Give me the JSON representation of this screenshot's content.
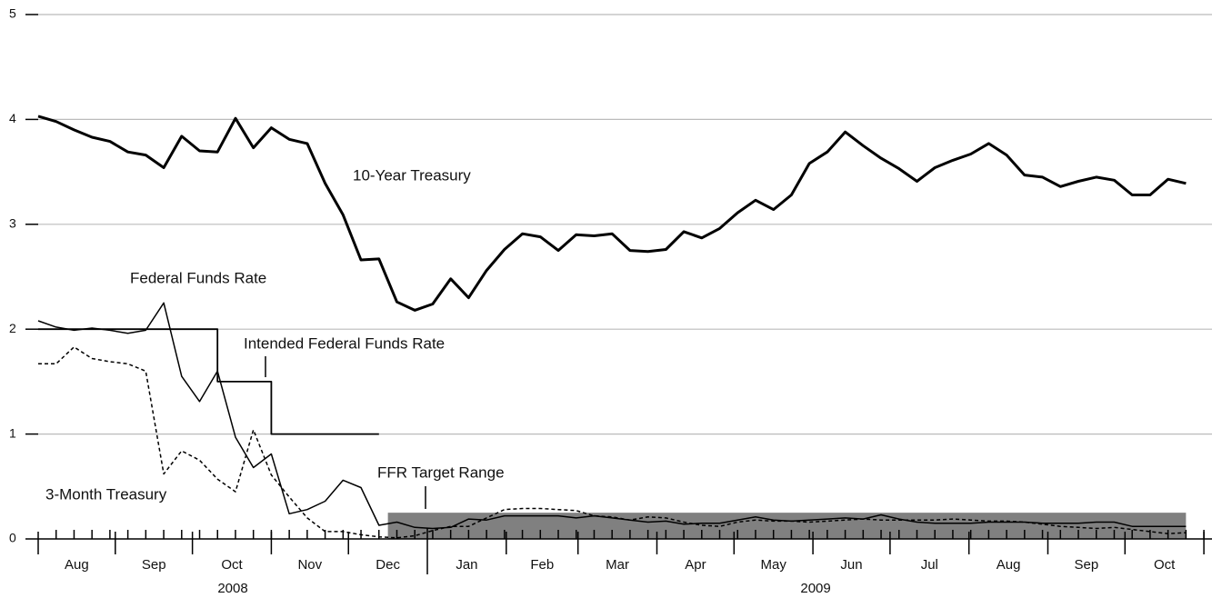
{
  "chart_data": {
    "type": "line",
    "ylim": [
      0,
      5
    ],
    "yticks": [
      0,
      1,
      2,
      3,
      4,
      5
    ],
    "xlim": [
      0,
      65.3
    ],
    "xticks": [
      0,
      4.3,
      8.6,
      13,
      17.3,
      21.7,
      26.1,
      30.1,
      34.5,
      38.8,
      43.2,
      47.5,
      51.9,
      56.3,
      60.6,
      65
    ],
    "minor_xticks": [
      1,
      2,
      3,
      4,
      5,
      6,
      7,
      8,
      9,
      10,
      11,
      12,
      13,
      14,
      15,
      16,
      17,
      18,
      19,
      20,
      21,
      22,
      23,
      24,
      25,
      26,
      27,
      28,
      29,
      30,
      31,
      32,
      33,
      34,
      35,
      36,
      37,
      38,
      39,
      40,
      41,
      42,
      43,
      44,
      45,
      46,
      47,
      48,
      49,
      50,
      51,
      52,
      53,
      54,
      55,
      56,
      57,
      58,
      59,
      60,
      61,
      62,
      63,
      64,
      65
    ],
    "months": [
      "Aug",
      "Sep",
      "Oct",
      "Nov",
      "Dec",
      "Jan",
      "Feb",
      "Mar",
      "Apr",
      "May",
      "Jun",
      "Jul",
      "Aug",
      "Sep",
      "Oct"
    ],
    "years": [
      "2008",
      "2009"
    ],
    "grid": true,
    "x": [
      0,
      1,
      2,
      3,
      4,
      5,
      6,
      7,
      8,
      9,
      10,
      11,
      12,
      13,
      14,
      15,
      16,
      17,
      18,
      19,
      20,
      21,
      22,
      23,
      24,
      25,
      26,
      27,
      28,
      29,
      30,
      31,
      32,
      33,
      34,
      35,
      36,
      37,
      38,
      39,
      40,
      41,
      42,
      43,
      44,
      45,
      46,
      47,
      48,
      49,
      50,
      51,
      52,
      53,
      54,
      55,
      56,
      57,
      58,
      59,
      60,
      61,
      62,
      63,
      64
    ],
    "series": [
      {
        "name": "10-Year Treasury",
        "color": "#000000",
        "values": [
          4.03,
          3.98,
          3.9,
          3.83,
          3.79,
          3.69,
          3.66,
          3.54,
          3.84,
          3.7,
          3.69,
          4.01,
          3.73,
          3.92,
          3.81,
          3.77,
          3.39,
          3.09,
          2.66,
          2.67,
          2.26,
          2.18,
          2.24,
          2.48,
          2.3,
          2.56,
          2.76,
          2.91,
          2.88,
          2.75,
          2.9,
          2.89,
          2.91,
          2.75,
          2.74,
          2.76,
          2.93,
          2.87,
          2.96,
          3.11,
          3.23,
          3.14,
          3.28,
          3.58,
          3.69,
          3.88,
          3.75,
          3.63,
          3.53,
          3.41,
          3.54,
          3.61,
          3.67,
          3.77,
          3.66,
          3.47,
          3.45,
          3.36,
          3.41,
          3.45,
          3.42,
          3.28,
          3.28,
          3.43,
          3.39
        ]
      },
      {
        "name": "Federal Funds Rate",
        "color": "#000000",
        "values": [
          2.08,
          2.02,
          1.99,
          2.01,
          1.99,
          1.96,
          1.99,
          2.25,
          1.55,
          1.31,
          1.6,
          0.97,
          0.68,
          0.81,
          0.24,
          0.28,
          0.36,
          0.56,
          0.49,
          0.13,
          0.16,
          0.11,
          0.1,
          0.11,
          0.19,
          0.18,
          0.22,
          0.22,
          0.22,
          0.22,
          0.2,
          0.22,
          0.2,
          0.18,
          0.16,
          0.17,
          0.14,
          0.15,
          0.15,
          0.18,
          0.21,
          0.18,
          0.17,
          0.18,
          0.19,
          0.2,
          0.19,
          0.23,
          0.19,
          0.16,
          0.15,
          0.15,
          0.15,
          0.16,
          0.16,
          0.16,
          0.15,
          0.15,
          0.15,
          0.16,
          0.16,
          0.12,
          0.12,
          0.12,
          0.12
        ]
      },
      {
        "name": "3-Month Treasury",
        "color": "#000000",
        "values": [
          1.67,
          1.67,
          1.83,
          1.72,
          1.69,
          1.67,
          1.6,
          0.62,
          0.84,
          0.75,
          0.57,
          0.45,
          1.04,
          0.61,
          0.4,
          0.2,
          0.07,
          0.07,
          0.04,
          0.02,
          0.01,
          0.03,
          0.08,
          0.12,
          0.12,
          0.2,
          0.28,
          0.29,
          0.29,
          0.28,
          0.27,
          0.22,
          0.21,
          0.18,
          0.21,
          0.2,
          0.16,
          0.13,
          0.12,
          0.16,
          0.18,
          0.17,
          0.17,
          0.16,
          0.17,
          0.18,
          0.19,
          0.18,
          0.18,
          0.18,
          0.18,
          0.19,
          0.18,
          0.17,
          0.17,
          0.16,
          0.14,
          0.12,
          0.11,
          0.1,
          0.11,
          0.09,
          0.07,
          0.05,
          0.06
        ]
      },
      {
        "name": "Intended Federal Funds Rate",
        "color": "#000000",
        "x": [
          0,
          10,
          10,
          13,
          13,
          19
        ],
        "values": [
          2,
          2,
          1.5,
          1.5,
          1,
          1
        ]
      }
    ],
    "target_range": {
      "name": "FFR Target Range",
      "color": "#808080",
      "x": [
        19.5,
        64
      ],
      "y": [
        0,
        0.25
      ]
    }
  }
}
